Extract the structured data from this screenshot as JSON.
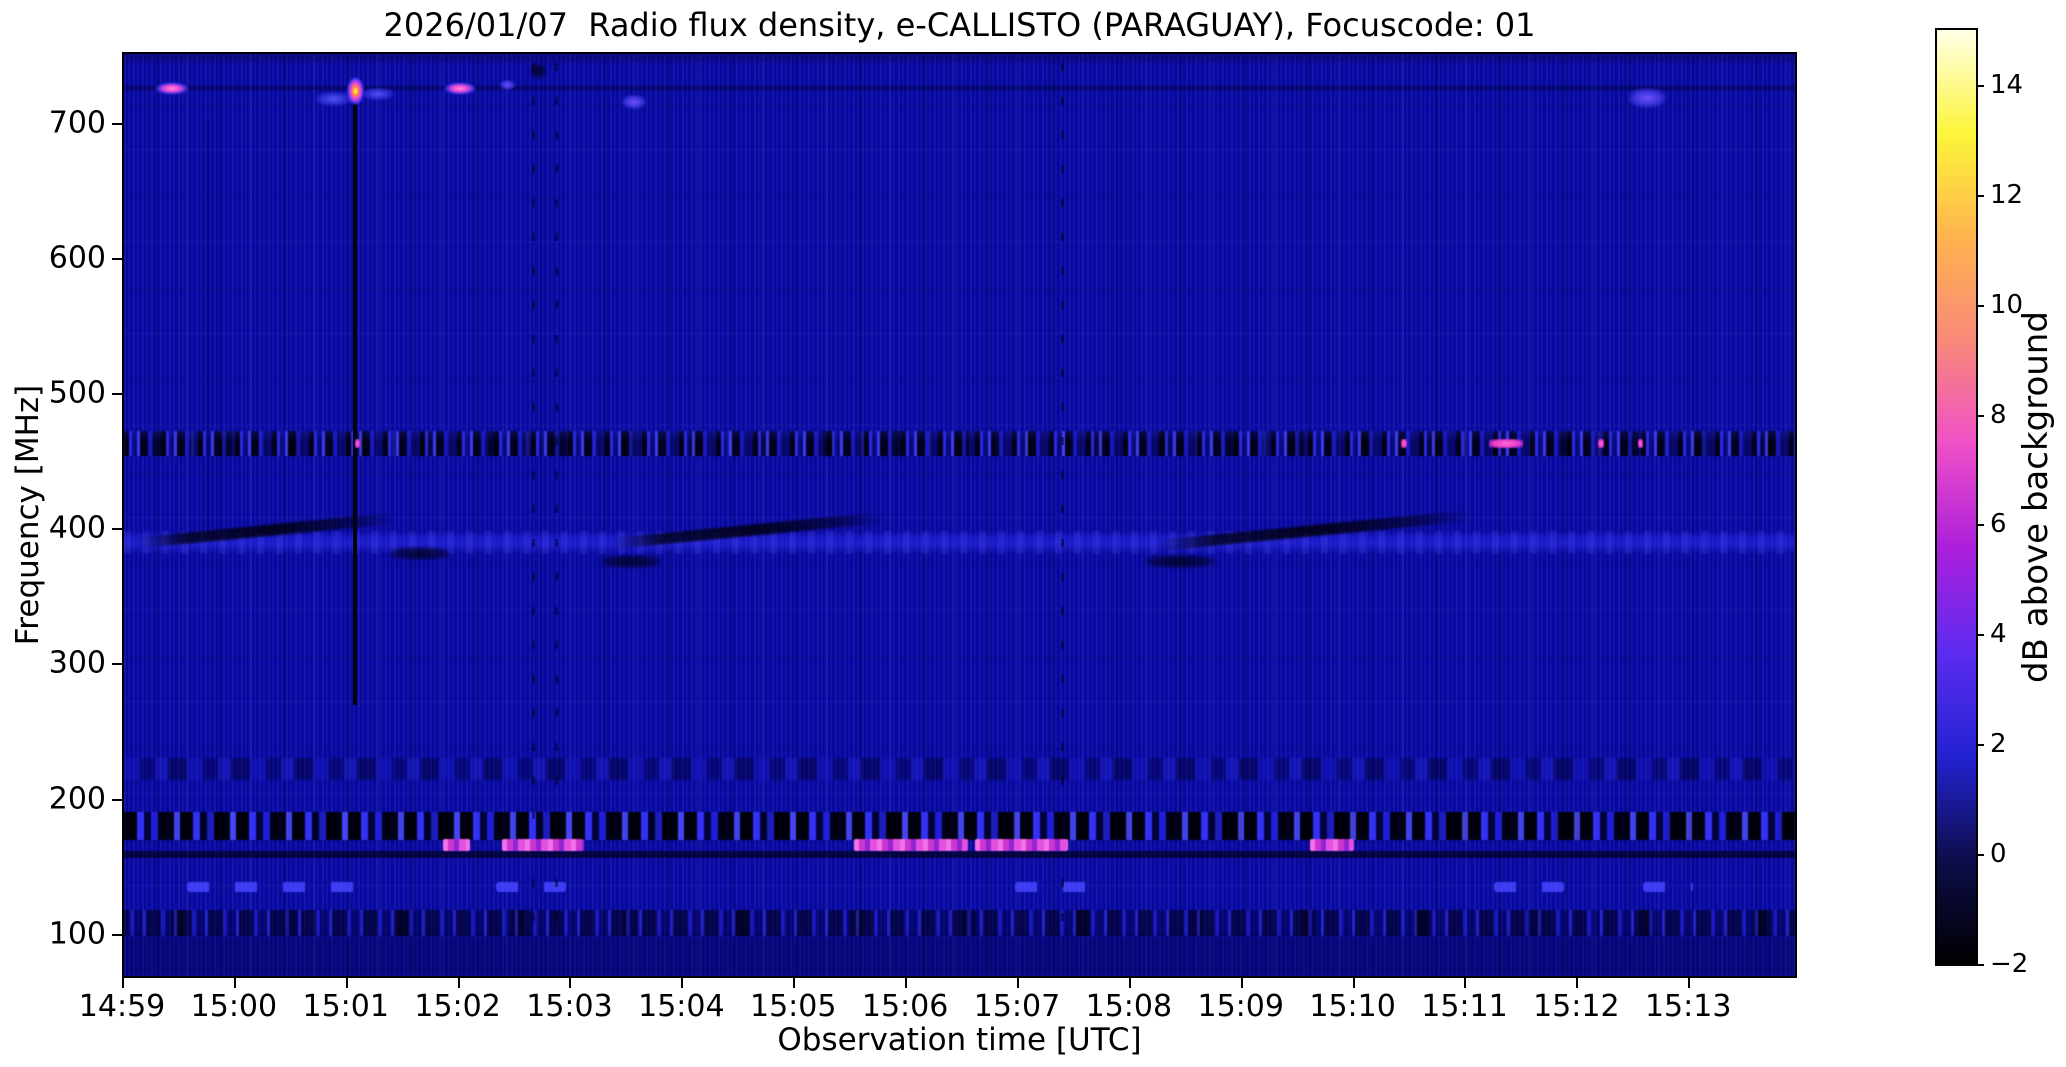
{
  "title": "2026/01/07  Radio flux density, e-CALLISTO (PARAGUAY), Focuscode: 01",
  "x_axis": {
    "label": "Observation time [UTC]",
    "ticks": [
      "14:59",
      "15:00",
      "15:01",
      "15:02",
      "15:03",
      "15:04",
      "15:05",
      "15:06",
      "15:07",
      "15:08",
      "15:09",
      "15:10",
      "15:11",
      "15:12",
      "15:13"
    ]
  },
  "y_axis": {
    "label": "Frequency [MHz]",
    "ticks": [
      "700",
      "600",
      "500",
      "400",
      "300",
      "200",
      "100"
    ]
  },
  "colorbar": {
    "label": "dB above background",
    "ticks": [
      {
        "value": 14,
        "text": "14"
      },
      {
        "value": 12,
        "text": "12"
      },
      {
        "value": 10,
        "text": "10"
      },
      {
        "value": 8,
        "text": "8"
      },
      {
        "value": 6,
        "text": "6"
      },
      {
        "value": 4,
        "text": "4"
      },
      {
        "value": 2,
        "text": "2"
      },
      {
        "value": 0,
        "text": "0"
      },
      {
        "value": -2,
        "text": "−2"
      }
    ],
    "vmin": -2,
    "vmax": 15,
    "gradient": [
      "#ffffe6",
      "#fcf53a",
      "#ffb34e",
      "#f9897a",
      "#ee4fc8",
      "#ab1fdb",
      "#5c2cf0",
      "#2323d2",
      "#0d0d4b",
      "#000000"
    ]
  },
  "chart_data": {
    "type": "heatmap",
    "title": "2026/01/07  Radio flux density, e-CALLISTO (PARAGUAY), Focuscode: 01",
    "xlabel": "Observation time [UTC]",
    "ylabel": "Frequency [MHz]",
    "zlabel": "dB above background",
    "x_range_utc": [
      "14:59",
      "15:14"
    ],
    "x_tick_interval_min": 1,
    "y_range_mhz": [
      69,
      751
    ],
    "z_range_db": [
      -2,
      15
    ],
    "background_level_db": 1,
    "background_color": "#0a0aa8",
    "colormap": "gnuplot2 (black-blue-magenta-orange-yellow-white)",
    "notable_features": [
      "Bright compact pink bursts near 727 MHz at ~14:59.4, ~15:01.1 (yellow-core flash with black vertical dropout line down to ~280 MHz), ~15:02.0; fainter blue-violet blobs at ~15:03.4 and ~15:12.6",
      "Speckled RFI band (black/blue with pink dots) at ~450-460 MHz across the whole interval",
      "Blue enhancement near 385-395 MHz crossed by three slanted dark lanes (~14:59-15:01, ~15:03.5-15:05, ~15:08.5-15:11)",
      "Faint mottled band near 220-235 MHz",
      "Strong intermittent RFI band at ~170-195 MHz with magenta bursts (~15:02.9, ~15:03.4-15:04.1, ~15:05.5-15:08.5, ~15:09.6-15:10.0, ~15:11)",
      "Dashed blue interference near 130-140 MHz and speckled noise band near 100-120 MHz",
      "Faint dotted vertical calibration lines near 15:02.7, 15:02.9 and 15:08.4"
    ],
    "features": [
      {
        "name": "top-dim-strip",
        "style": "bottomdim",
        "fx": 0,
        "fy": 0,
        "fw": 1,
        "fh": 0.008
      },
      {
        "name": "line-730mhz",
        "style": "darkline",
        "fx": 0,
        "fy": 0.0346,
        "fw": 1,
        "fh": 0.0043
      },
      {
        "name": "rfi-band-455mhz",
        "style": "speckle",
        "fx": 0,
        "fy": 0.4093,
        "fw": 1,
        "fh": 0.027
      },
      {
        "name": "blue-band-390mhz",
        "style": "blueband",
        "fx": 0,
        "fy": 0.5173,
        "fw": 1,
        "fh": 0.0248
      },
      {
        "name": "band-225mhz",
        "style": "mottle",
        "fx": 0,
        "fy": 0.7635,
        "fw": 1,
        "fh": 0.0238
      },
      {
        "name": "rfi-band-170mhz",
        "style": "speckle2",
        "fx": 0,
        "fy": 0.8218,
        "fw": 1,
        "fh": 0.0302
      },
      {
        "name": "dark-line-160mhz",
        "style": "darkline2",
        "fx": 0,
        "fy": 0.8639,
        "fw": 1,
        "fh": 0.0086
      },
      {
        "name": "noise-band-100mhz",
        "style": "noise",
        "fx": 0,
        "fy": 0.9287,
        "fw": 1,
        "fh": 0.0281
      },
      {
        "name": "bottom-dim-region",
        "style": "bottomdim",
        "fx": 0,
        "fy": 0.9568,
        "fw": 1,
        "fh": 0.0432
      },
      {
        "name": "dashes-130mhz-a",
        "style": "dashes",
        "fx": 0.0376,
        "fy": 0.898,
        "fw": 0.1015,
        "fh": 0.011
      },
      {
        "name": "dashes-130mhz-b",
        "style": "dashes",
        "fx": 0.2227,
        "fy": 0.898,
        "fw": 0.0418,
        "fh": 0.011
      },
      {
        "name": "dashes-130mhz-c",
        "style": "dashes",
        "fx": 0.5331,
        "fy": 0.898,
        "fw": 0.0537,
        "fh": 0.011
      },
      {
        "name": "dashes-130mhz-d",
        "style": "dashes",
        "fx": 0.8197,
        "fy": 0.898,
        "fw": 0.0418,
        "fh": 0.011
      },
      {
        "name": "dashes-130mhz-e",
        "style": "dashes",
        "fx": 0.9093,
        "fy": 0.898,
        "fw": 0.0299,
        "fh": 0.011
      },
      {
        "name": "vertical-dropout-1501",
        "style": "blackline",
        "fx": 0.1373,
        "fy": 0.0518,
        "fw": 0.0024,
        "fh": 0.6544
      },
      {
        "name": "dotted-vline-1502a",
        "style": "dotline",
        "fx": 0.2442,
        "fy": 0.01,
        "fw": 0.0018,
        "fh": 0.95
      },
      {
        "name": "dotted-vline-1502b",
        "style": "dotline",
        "fx": 0.2579,
        "fy": 0.01,
        "fw": 0.0018,
        "fh": 0.95
      },
      {
        "name": "dotted-vline-1508",
        "style": "dotline",
        "fx": 0.5606,
        "fy": 0.01,
        "fw": 0.0018,
        "fh": 0.95
      },
      {
        "name": "faint-vline-1500",
        "style": "faintline",
        "fx": 0.0496,
        "fy": 0.07,
        "fw": 0.0015,
        "fh": 0.45
      },
      {
        "name": "burst-727mhz-1459",
        "style": "pinkblob",
        "fx": 0.0167,
        "fy": 0.0292,
        "fw": 0.0239,
        "fh": 0.0162
      },
      {
        "name": "smudge-left-of-flash",
        "style": "bluestreak",
        "fx": 0.1152,
        "fy": 0.041,
        "fw": 0.0209,
        "fh": 0.0151
      },
      {
        "name": "flash-727mhz-1501",
        "style": "firespot",
        "fx": 0.1331,
        "fy": 0.0248,
        "fw": 0.0113,
        "fh": 0.0335
      },
      {
        "name": "streak-right-of-flash",
        "style": "bluestreak",
        "fx": 0.1433,
        "fy": 0.0367,
        "fw": 0.0179,
        "fh": 0.013
      },
      {
        "name": "burst-727mhz-1502",
        "style": "pinkblob",
        "fx": 0.1899,
        "fy": 0.0292,
        "fw": 0.0227,
        "fh": 0.0162
      },
      {
        "name": "violet-dot-1502",
        "style": "violetblob",
        "fx": 0.2251,
        "fy": 0.0281,
        "fw": 0.009,
        "fh": 0.0108
      },
      {
        "name": "blob-718mhz-1503",
        "style": "violetblob",
        "fx": 0.2979,
        "fy": 0.0443,
        "fw": 0.0143,
        "fh": 0.0151
      },
      {
        "name": "blob-712mhz-1512",
        "style": "violetblob",
        "fx": 0.9003,
        "fy": 0.0367,
        "fw": 0.0227,
        "fh": 0.0216
      },
      {
        "name": "dark-spot-top-1502",
        "style": "darkspot",
        "fx": 0.243,
        "fy": 0.0108,
        "fw": 0.0096,
        "fh": 0.0151
      },
      {
        "name": "magenta-170mhz-a",
        "style": "magenta",
        "fx": 0.191,
        "fy": 0.851,
        "fw": 0.0161,
        "fh": 0.0135
      },
      {
        "name": "magenta-170mhz-b",
        "style": "magenta",
        "fx": 0.2263,
        "fy": 0.851,
        "fw": 0.049,
        "fh": 0.0135
      },
      {
        "name": "magenta-170mhz-c",
        "style": "magenta",
        "fx": 0.437,
        "fy": 0.851,
        "fw": 0.0681,
        "fh": 0.0135
      },
      {
        "name": "magenta-170mhz-d",
        "style": "magenta",
        "fx": 0.5093,
        "fy": 0.851,
        "fw": 0.0555,
        "fh": 0.0135
      },
      {
        "name": "magenta-170mhz-e",
        "style": "magenta",
        "fx": 0.7098,
        "fy": 0.851,
        "fw": 0.0263,
        "fh": 0.0135
      },
      {
        "name": "magdot-455mhz-a",
        "style": "magdot",
        "fx": 0.1385,
        "fy": 0.4179,
        "fw": 0.003,
        "fh": 0.0097
      },
      {
        "name": "magdot-455mhz-b",
        "style": "magdot",
        "fx": 0.7642,
        "fy": 0.4179,
        "fw": 0.0036,
        "fh": 0.0097
      },
      {
        "name": "magdot-455mhz-c",
        "style": "magdot",
        "fx": 0.8167,
        "fy": 0.4179,
        "fw": 0.0203,
        "fh": 0.0097
      },
      {
        "name": "magdot-455mhz-d",
        "style": "magdot",
        "fx": 0.8824,
        "fy": 0.4179,
        "fw": 0.0036,
        "fh": 0.0097
      },
      {
        "name": "magdot-455mhz-e",
        "style": "magdot",
        "fx": 0.9063,
        "fy": 0.4179,
        "fw": 0.003,
        "fh": 0.0097
      },
      {
        "name": "diag-lane-1",
        "style": "diag",
        "fx": 0.0078,
        "fy": 0.5108,
        "fw": 0.1552,
        "fh": 0.0119
      },
      {
        "name": "diag-lane-2",
        "style": "diag",
        "fx": 0.2914,
        "fy": 0.5108,
        "fw": 0.1642,
        "fh": 0.0119
      },
      {
        "name": "diag-lane-3",
        "style": "diag",
        "fx": 0.6167,
        "fy": 0.5108,
        "fw": 0.191,
        "fh": 0.0119
      },
      {
        "name": "diag-darkspot-1",
        "style": "darkspot",
        "fx": 0.1594,
        "fy": 0.535,
        "fw": 0.036,
        "fh": 0.014
      },
      {
        "name": "diag-darkspot-2",
        "style": "darkspot",
        "fx": 0.2854,
        "fy": 0.543,
        "fw": 0.036,
        "fh": 0.014
      },
      {
        "name": "diag-darkspot-3",
        "style": "darkspot",
        "fx": 0.6109,
        "fy": 0.543,
        "fw": 0.042,
        "fh": 0.014
      }
    ]
  }
}
